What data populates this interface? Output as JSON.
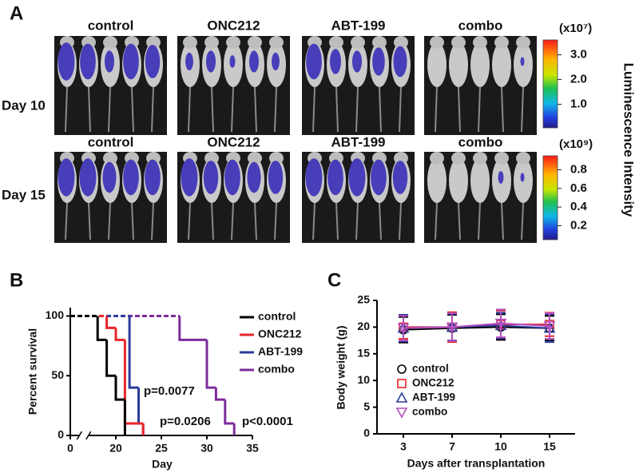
{
  "panel_a": {
    "letter": "A",
    "groups": [
      "control",
      "ONC212",
      "ABT-199",
      "combo"
    ],
    "rows": [
      {
        "label": "Day 10",
        "scale_label": "(x10⁷)",
        "lim": [
          0.05,
          3.6
        ],
        "ticks": [
          {
            "value": 3,
            "label": "3.0"
          },
          {
            "value": 2,
            "label": "2.0"
          },
          {
            "value": 1,
            "label": "1.0"
          }
        ]
      },
      {
        "label": "Day 15",
        "scale_label": "(x10⁹)",
        "lim": [
          0.05,
          0.95
        ],
        "ticks": [
          0.8,
          0.6,
          0.4,
          0.2
        ]
      }
    ],
    "colorbar_title": "Luminescence Intensity"
  },
  "chart_data": [
    {
      "type": "survival",
      "letter": "B",
      "ylabel": "Percent survival",
      "xlabel": "Day",
      "xlim": [
        0,
        35
      ],
      "xbreak": [
        1,
        17
      ],
      "xticks": [
        0,
        20,
        25,
        30,
        35
      ],
      "ylim": [
        0,
        107
      ],
      "yticks": [
        0,
        50,
        100
      ],
      "series": [
        {
          "name": "control",
          "color": "#000000",
          "x": [
            0,
            18,
            19,
            20,
            21
          ],
          "values": [
            100,
            80,
            50,
            30,
            0
          ]
        },
        {
          "name": "ONC212",
          "color": "#e8262a",
          "x": [
            0,
            19,
            20,
            21,
            23
          ],
          "values": [
            100,
            90,
            80,
            10,
            0
          ]
        },
        {
          "name": "ABT-199",
          "color": "#2b3c9b",
          "x": [
            0,
            21.5,
            22.5,
            23
          ],
          "values": [
            100,
            40,
            10,
            0
          ]
        },
        {
          "name": "combo",
          "color": "#7d2d9a",
          "x": [
            0,
            27,
            30,
            31,
            32,
            33
          ],
          "values": [
            100,
            80,
            40,
            30,
            10,
            0
          ]
        }
      ],
      "annotations": [
        {
          "text": "p=0.0077",
          "color": "#2b3c9b"
        },
        {
          "text": "p=0.0206",
          "color": "#e8262a"
        },
        {
          "text": "p<0.0001",
          "color": "#7d2d9a"
        }
      ]
    },
    {
      "type": "line",
      "letter": "C",
      "ylabel": "Body weight (g)",
      "xlabel": "Days after transplantation",
      "categories": [
        "3",
        "7",
        "10",
        "15"
      ],
      "ylim": [
        0,
        25
      ],
      "yticks": [
        0,
        5,
        10,
        15,
        20,
        25
      ],
      "series": [
        {
          "name": "control",
          "color": "#000000",
          "marker": "circle",
          "values": [
            19.5,
            19.8,
            20,
            19.8
          ],
          "errors": [
            2.4,
            2.5,
            2.4,
            2.3
          ]
        },
        {
          "name": "ONC212",
          "color": "#e8262a",
          "marker": "square",
          "values": [
            20,
            20,
            20.5,
            20.5
          ],
          "errors": [
            2.2,
            2.8,
            2.6,
            2.2
          ]
        },
        {
          "name": "ABT-199",
          "color": "#2b3c9b",
          "marker": "triangle",
          "values": [
            19.8,
            20,
            20.3,
            19.8
          ],
          "errors": [
            2.5,
            2.5,
            2.4,
            2.6
          ]
        },
        {
          "name": "combo",
          "color": "#b44fc0",
          "marker": "triangle-down",
          "values": [
            19.8,
            20,
            20.7,
            20.2
          ],
          "errors": [
            2.3,
            2.6,
            2.6,
            2.4
          ]
        }
      ]
    }
  ]
}
